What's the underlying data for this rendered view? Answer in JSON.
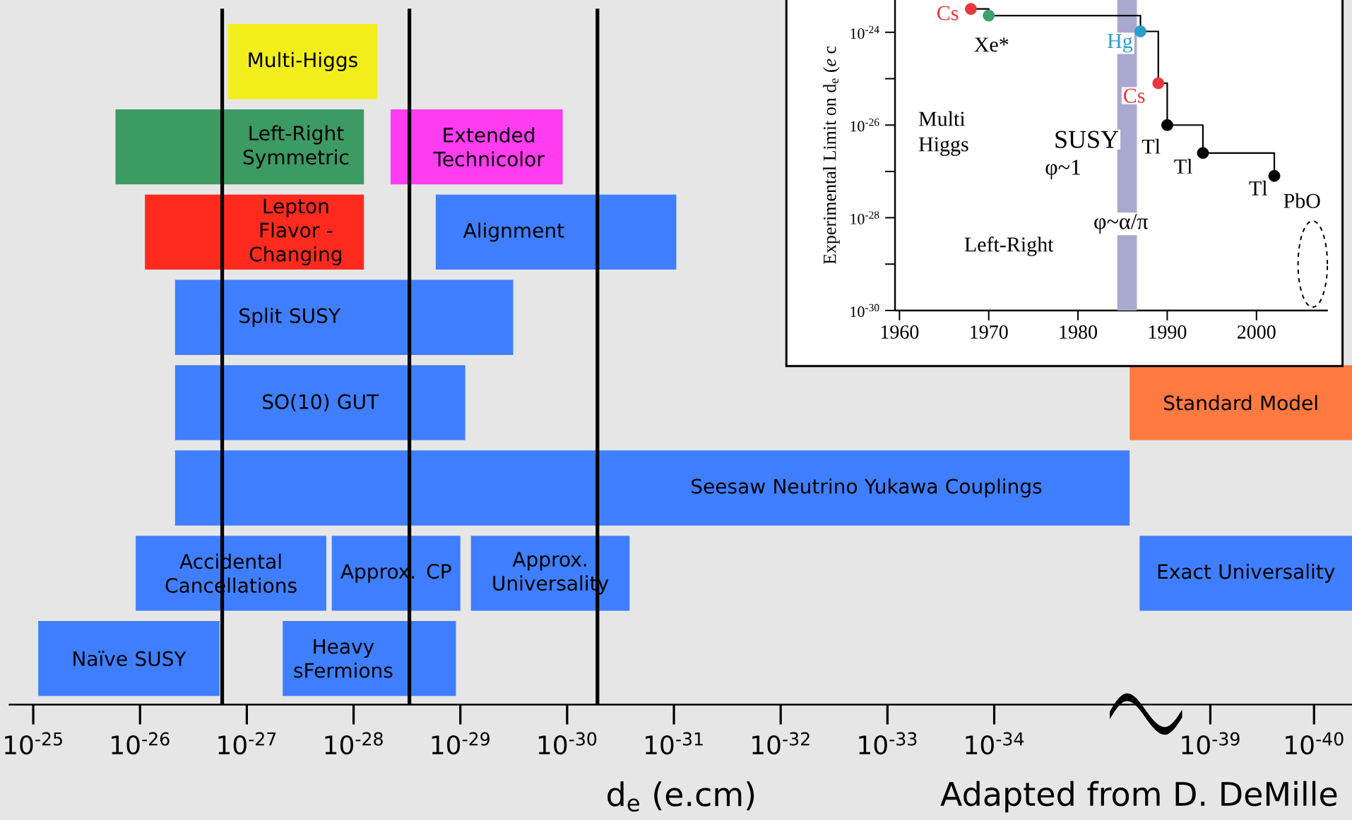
{
  "chart_data": [
    {
      "type": "bar",
      "orientation": "horizontal",
      "log": "x",
      "xlabel": "d$_{e}$  (e.cm)",
      "categories": [
        null,
        null,
        null,
        null,
        null,
        null,
        null,
        null
      ],
      "xlim": [
        1.7e-25,
        5.4e-36
      ],
      "xticks": [
        {
          "value": 1e-25,
          "label": "10$^{-25}$"
        },
        {
          "value": 1e-26,
          "label": "10$^{-26}$"
        },
        {
          "value": 1e-27,
          "label": "10$^{-27}$"
        },
        {
          "value": 1e-28,
          "label": "10$^{-28}$"
        },
        {
          "value": 1e-29,
          "label": "10$^{-29}$"
        },
        {
          "value": 1e-30,
          "label": "10$^{-30}$"
        },
        {
          "value": 1e-31,
          "label": "10$^{-31}$"
        },
        {
          "value": 1e-32,
          "label": "10$^{-32}$"
        },
        {
          "value": 1e-33,
          "label": "10$^{-33}$"
        },
        {
          "value": 1e-34,
          "label": "10$^{-34}$"
        }
      ],
      "series": [
        {
          "name": "Multi-Higgs",
          "color": "#f2ee1c",
          "values": [
            1.44e-27,
            null,
            null,
            null,
            null,
            null,
            null,
            null
          ],
          "base": [
            6e-29,
            null,
            null,
            null,
            null,
            null,
            null,
            null
          ]
        },
        {
          "name": "Left-Right Symmetric",
          "color": "#3c9a63",
          "values": [
            null,
            1.69e-26,
            null,
            null,
            null,
            null,
            null,
            null
          ],
          "base": [
            null,
            8e-29,
            null,
            null,
            null,
            null,
            null,
            null
          ]
        },
        {
          "name": "Extended Technicolor",
          "color": "#ff3cf0",
          "values": [
            null,
            4.39e-29,
            null,
            null,
            null,
            null,
            null,
            null
          ],
          "base": [
            null,
            1.1e-30,
            null,
            null,
            null,
            null,
            null,
            null
          ]
        },
        {
          "name": "Lepton Flavor - Changing",
          "color": "#ff2a1e",
          "values": [
            null,
            null,
            8.92e-27,
            null,
            null,
            null,
            null,
            null
          ],
          "base": [
            null,
            null,
            8e-29,
            null,
            null,
            null,
            null,
            null
          ]
        },
        {
          "name": "Alignment",
          "color": "#3f7fff",
          "values": [
            null,
            null,
            1.69e-29,
            null,
            null,
            null,
            null,
            null
          ],
          "base": [
            null,
            null,
            9.5e-32,
            null,
            null,
            null,
            null,
            null
          ]
        },
        {
          "name": "Split SUSY",
          "color": "#3f7fff",
          "values": [
            null,
            null,
            null,
            4.7e-27,
            null,
            null,
            null,
            null
          ],
          "base": [
            null,
            null,
            null,
            3.2e-30,
            null,
            null,
            null,
            null
          ]
        },
        {
          "name": "SO(10) GUT",
          "color": "#3f7fff",
          "values": [
            null,
            null,
            null,
            null,
            4.69e-27,
            null,
            null,
            null
          ],
          "base": [
            null,
            null,
            null,
            null,
            9e-30,
            null,
            null,
            null
          ]
        },
        {
          "name": "Seesaw Neutrino Yukawa Couplings",
          "color": "#3f7fff",
          "values": [
            null,
            null,
            null,
            null,
            null,
            4.7e-27,
            null,
            null
          ],
          "base": [
            null,
            null,
            null,
            null,
            null,
            5.4e-36,
            null,
            null
          ]
        },
        {
          "name": "Accidental Cancellations",
          "color": "#3f7fff",
          "values": [
            null,
            null,
            null,
            null,
            null,
            null,
            1.08e-26,
            null
          ],
          "base": [
            null,
            null,
            null,
            null,
            null,
            null,
            1.8e-28,
            null
          ]
        },
        {
          "name": "Approx. CP",
          "color": "#3f7fff",
          "values": [
            null,
            null,
            null,
            null,
            null,
            null,
            1.5e-28,
            null
          ],
          "base": [
            null,
            null,
            null,
            null,
            null,
            null,
            1e-29,
            null
          ]
        },
        {
          "name": "Approx. Universality",
          "color": "#3f7fff",
          "values": [
            null,
            null,
            null,
            null,
            null,
            null,
            7.7e-30,
            null
          ],
          "base": [
            null,
            null,
            null,
            null,
            null,
            null,
            2.6e-31,
            null
          ]
        },
        {
          "name": "Naïve SUSY",
          "color": "#3f7fff",
          "values": [
            null,
            null,
            null,
            null,
            null,
            null,
            null,
            8.8e-26
          ],
          "base": [
            null,
            null,
            null,
            null,
            null,
            null,
            null,
            1.8e-27
          ]
        },
        {
          "name": "Heavy sFermions",
          "color": "#3f7fff",
          "values": [
            null,
            null,
            null,
            null,
            null,
            null,
            null,
            4.5e-28
          ],
          "base": [
            null,
            null,
            null,
            null,
            null,
            null,
            null,
            1.1e-29
          ]
        }
      ],
      "ref_lines": [
        {
          "axis": "x",
          "value": 1.7e-27
        },
        {
          "axis": "x",
          "value": 3e-29
        },
        {
          "axis": "x",
          "value": 5.2e-31
        }
      ],
      "annotations": [
        "Adapted from D. DeMille"
      ]
    },
    {
      "type": "bar",
      "orientation": "horizontal",
      "log": "x",
      "categories": [
        null,
        null,
        null,
        null,
        null,
        null,
        null,
        null
      ],
      "xlim": [
        6e-39,
        4.3e-41
      ],
      "xticks": [
        {
          "value": 1e-39,
          "label": "10$^{-39}$"
        },
        {
          "value": 1e-40,
          "label": "10$^{-40}$"
        }
      ],
      "series": [
        {
          "name": "Standard Model",
          "color": "#ff7a40",
          "values": [
            null,
            null,
            null,
            null,
            5.95e-39,
            null,
            null,
            null
          ],
          "base": [
            null,
            null,
            null,
            null,
            4.3e-41,
            null,
            null,
            null
          ]
        },
        {
          "name": "Exact Universality",
          "color": "#3f7fff",
          "values": [
            null,
            null,
            null,
            null,
            null,
            null,
            4.76e-39,
            null
          ],
          "base": [
            null,
            null,
            null,
            null,
            null,
            null,
            4.3e-41,
            null
          ]
        }
      ]
    },
    {
      "type": "step",
      "log": "y",
      "ylabel": "Experimental Limit on d$_{e}$ (*e* c",
      "x": [
        1968,
        1970,
        1987,
        1989,
        1990,
        1994,
        2002
      ],
      "values": [
        3.2e-24,
        2.3e-24,
        1.05e-24,
        8e-26,
        1e-26,
        2.5e-27,
        8e-28
      ],
      "color": "#000000",
      "colors": [
        "#e8383d",
        "#3aa26a",
        "#2a9dc8",
        "#e8383d",
        "#000000",
        "#000000",
        "#000000"
      ],
      "marker": "circle",
      "xlim": [
        1959.5,
        2008
      ],
      "ylim": [
        1e-30,
        5e-24
      ],
      "xticks": [
        1960,
        1970,
        1980,
        1990,
        2000
      ],
      "yticks": [
        {
          "value": 1e-24,
          "label": "10$^{-24}$"
        },
        {
          "value": 1e-25,
          "label": null
        },
        {
          "value": 1e-26,
          "label": "10$^{-26}$"
        },
        {
          "value": 1e-27,
          "label": null
        },
        {
          "value": 1e-28,
          "label": "10$^{-28}$"
        },
        {
          "value": 1e-29,
          "label": null
        },
        {
          "value": 1e-30,
          "label": "10$^{-30}$"
        }
      ],
      "bands": [
        {
          "axis": "x",
          "from": 1984.4,
          "to": 1986.6,
          "color": "#a9a9d0"
        }
      ],
      "annotations": [
        {
          "text": "Cs",
          "x": 1965.4,
          "y": 2.6e-24
        },
        "Xe*",
        {
          "text": "Hg",
          "x": 1984.7,
          "y": 5.8e-25
        },
        {
          "text": "Cs",
          "x": 1986.3,
          "y": 4.3e-26
        },
        {
          "text": "Tl",
          "x": 1988.2,
          "y": 3.5e-27
        },
        {
          "text": "Tl",
          "x": 1991.8,
          "y": 1.3e-27
        },
        {
          "text": "Tl",
          "x": 2000.2,
          "y": 4.4e-28
        },
        "PbO",
        "Multi Higgs",
        "Left-Right",
        "SUSY",
        "φ~1",
        "φ~α/π"
      ]
    }
  ]
}
